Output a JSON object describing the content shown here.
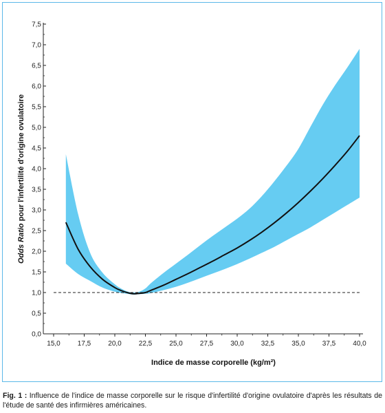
{
  "chart_data": {
    "type": "line",
    "xlabel": "Indice de masse corporelle (kg/m²)",
    "ylabel_italic": "Odds Ratio",
    "ylabel_rest": " pour l'infertilité d'origine ovulatoire",
    "xlim": [
      15.0,
      40.0
    ],
    "ylim": [
      0.0,
      7.5
    ],
    "xticks": [
      "15,0",
      "17,5",
      "20,0",
      "22,5",
      "25,0",
      "27,5",
      "30,0",
      "32,5",
      "35,0",
      "37,5",
      "40,0"
    ],
    "xtick_values": [
      15.0,
      17.5,
      20.0,
      22.5,
      25.0,
      27.5,
      30.0,
      32.5,
      35.0,
      37.5,
      40.0
    ],
    "yticks": [
      "0,0",
      "0,5",
      "1,0",
      "1,5",
      "2,0",
      "2,5",
      "3,0",
      "3,5",
      "4,0",
      "4,5",
      "5,0",
      "5,5",
      "6,0",
      "6,5",
      "7,0",
      "7,5"
    ],
    "ytick_values": [
      0.0,
      0.5,
      1.0,
      1.5,
      2.0,
      2.5,
      3.0,
      3.5,
      4.0,
      4.5,
      5.0,
      5.5,
      6.0,
      6.5,
      7.0,
      7.5
    ],
    "reference_line": 1.0,
    "band_color": "#66ccf2",
    "line_color": "#111111",
    "x": [
      16.0,
      17.0,
      18.0,
      19.0,
      20.0,
      20.5,
      21.0,
      21.5,
      22.0,
      22.5,
      23.0,
      24.0,
      25.0,
      26.0,
      27.0,
      28.0,
      29.0,
      30.0,
      31.0,
      32.0,
      33.0,
      34.0,
      35.0,
      36.0,
      37.0,
      38.0,
      39.0,
      40.0
    ],
    "series": [
      {
        "values": [
          2.7,
          2.05,
          1.62,
          1.32,
          1.12,
          1.05,
          1.0,
          0.97,
          0.98,
          1.0,
          1.06,
          1.18,
          1.32,
          1.46,
          1.61,
          1.76,
          1.92,
          2.08,
          2.26,
          2.46,
          2.68,
          2.92,
          3.18,
          3.46,
          3.76,
          4.08,
          4.42,
          4.8
        ]
      }
    ],
    "band_upper": [
      4.35,
      2.9,
      1.95,
      1.48,
      1.2,
      1.1,
      1.03,
      1.0,
      1.02,
      1.1,
      1.24,
      1.48,
      1.7,
      1.92,
      2.15,
      2.37,
      2.58,
      2.79,
      3.03,
      3.33,
      3.68,
      4.06,
      4.48,
      5.02,
      5.55,
      6.02,
      6.45,
      6.9
    ],
    "band_lower": [
      1.7,
      1.45,
      1.28,
      1.12,
      1.02,
      0.99,
      0.97,
      0.95,
      0.96,
      0.97,
      0.99,
      1.06,
      1.14,
      1.24,
      1.35,
      1.46,
      1.57,
      1.69,
      1.82,
      1.96,
      2.1,
      2.26,
      2.42,
      2.58,
      2.76,
      2.94,
      3.12,
      3.3
    ]
  },
  "caption": {
    "label": "Fig. 1 :",
    "text": " Influence de l'indice de masse corporelle sur le risque d'infertilité d'origine ovulatoire d'après les résultats de l'étude de santé des infirmières américaines."
  }
}
